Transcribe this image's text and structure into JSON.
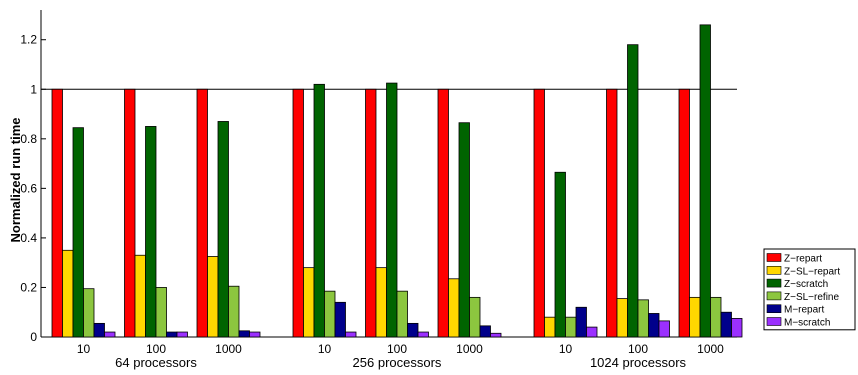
{
  "chart_data": {
    "type": "bar",
    "ylabel": "Normalized run time",
    "ylim": [
      0,
      1.32
    ],
    "yticks": [
      0,
      0.2,
      0.4,
      0.6,
      0.8,
      1,
      1.2
    ],
    "ytick_labels": [
      "0",
      "0.2",
      "0.4",
      "0.6",
      "0.8",
      "1",
      "1.2"
    ],
    "reference_line": 1,
    "legend_position": "bottom-right",
    "groups": [
      {
        "label": "64 processors",
        "categories": [
          "10",
          "100",
          "1000"
        ]
      },
      {
        "label": "256 processors",
        "categories": [
          "10",
          "100",
          "1000"
        ]
      },
      {
        "label": "1024 processors",
        "categories": [
          "10",
          "100",
          "1000"
        ]
      }
    ],
    "series": [
      {
        "name": "Z−repart",
        "color": "#ff0000",
        "values": [
          1,
          1,
          1,
          1,
          1,
          1,
          1,
          1,
          1
        ]
      },
      {
        "name": "Z−SL−repart",
        "color": "#ffd700",
        "values": [
          0.35,
          0.33,
          0.325,
          0.28,
          0.28,
          0.235,
          0.08,
          0.155,
          0.16
        ]
      },
      {
        "name": "Z−scratch",
        "color": "#006400",
        "values": [
          0.845,
          0.85,
          0.87,
          1.02,
          1.025,
          0.865,
          0.665,
          1.18,
          1.26
        ]
      },
      {
        "name": "Z−SL−refine",
        "color": "#8cc63f",
        "values": [
          0.195,
          0.2,
          0.205,
          0.185,
          0.185,
          0.16,
          0.08,
          0.15,
          0.16
        ]
      },
      {
        "name": "M−repart",
        "color": "#00008b",
        "values": [
          0.055,
          0.02,
          0.025,
          0.14,
          0.055,
          0.045,
          0.12,
          0.095,
          0.1
        ]
      },
      {
        "name": "M−scratch",
        "color": "#9b30ff",
        "values": [
          0.02,
          0.02,
          0.02,
          0.02,
          0.02,
          0.015,
          0.04,
          0.065,
          0.075
        ]
      }
    ]
  }
}
